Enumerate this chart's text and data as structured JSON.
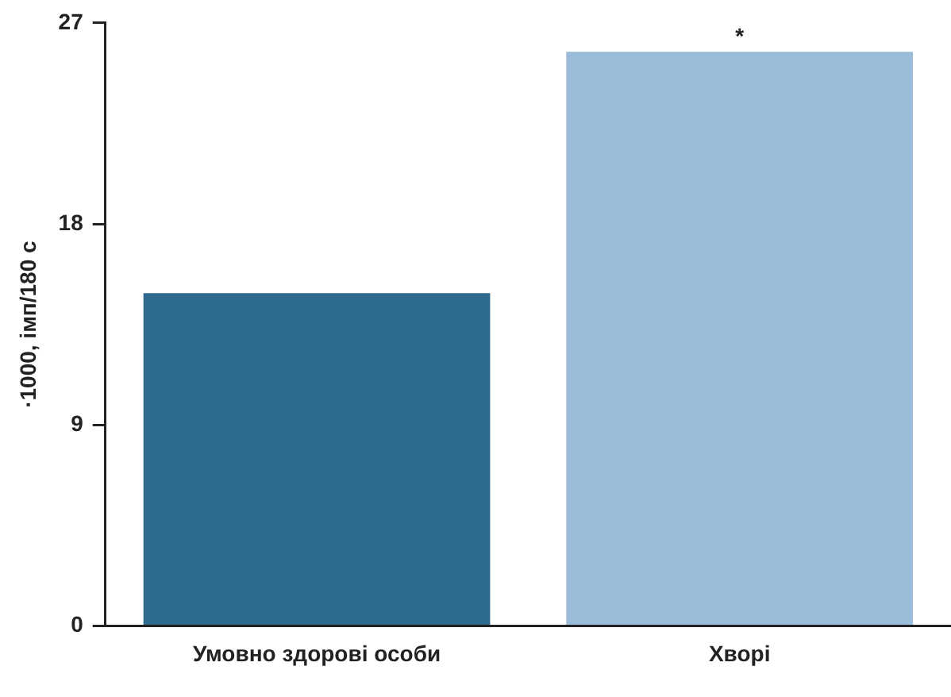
{
  "chart_data": {
    "type": "bar",
    "ylabel": "·1000, імп/180 с",
    "categories": [
      "Умовно здорові особи",
      "Хворі"
    ],
    "values": [
      14.9,
      25.7
    ],
    "colors": [
      "#2e6a8e",
      "#9bbcd9"
    ],
    "ylim": [
      0,
      27
    ],
    "yticks": [
      0,
      9,
      18,
      27
    ],
    "grid": false,
    "legend": false,
    "annotations": [
      {
        "text": "*",
        "x": "Хворі",
        "y": 25.7
      }
    ]
  }
}
